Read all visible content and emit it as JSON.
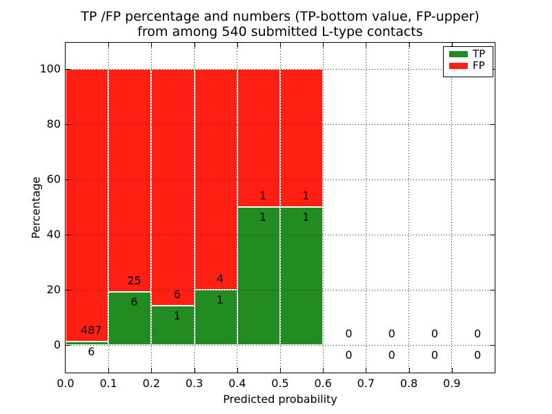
{
  "chart_data": {
    "type": "bar",
    "stacked": true,
    "normalized_to_percent": true,
    "title_lines": [
      "TP /FP percentage and numbers (TP-bottom value, FP-upper)",
      "from among 540 submitted L-type contacts"
    ],
    "xlabel": "Predicted probability",
    "ylabel": "Percentage",
    "xlim": [
      0.0,
      1.0
    ],
    "ylim": [
      -10,
      110
    ],
    "bin_width": 0.1,
    "bin_starts": [
      0.0,
      0.1,
      0.2,
      0.3,
      0.4,
      0.5,
      0.6,
      0.7,
      0.8,
      0.9
    ],
    "xtick_labels": [
      "0.0",
      "0.1",
      "0.2",
      "0.3",
      "0.4",
      "0.5",
      "0.6",
      "0.7",
      "0.8",
      "0.9"
    ],
    "ytick_values": [
      0,
      20,
      40,
      60,
      80,
      100
    ],
    "series": [
      {
        "name": "TP",
        "color": "#228b22",
        "counts": [
          6,
          6,
          1,
          1,
          1,
          1,
          0,
          0,
          0,
          0
        ]
      },
      {
        "name": "FP",
        "color": "#ff1f13",
        "counts": [
          487,
          25,
          6,
          4,
          1,
          1,
          0,
          0,
          0,
          0
        ]
      }
    ],
    "tp_percent_by_bin": [
      1.2,
      19.4,
      14.3,
      20.0,
      50.0,
      50.0,
      0,
      0,
      0,
      0
    ],
    "total_contacts": 540,
    "grid": "dotted",
    "legend_position": "upper right",
    "annotation_note": "TP count shown below segment boundary, FP count above"
  },
  "colors": {
    "tp_green": "#228b22",
    "fp_red": "#ff1f13",
    "bar_edge": "#ffffff",
    "grid": "#1a1a1a",
    "spine": "#000000",
    "background": "#ffffff",
    "text": "#000000"
  }
}
